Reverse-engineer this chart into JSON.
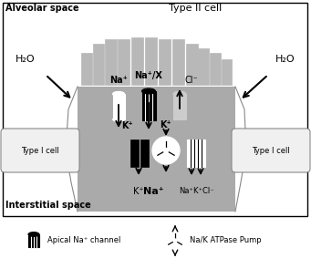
{
  "title_alveolar": "Alveolar space",
  "title_typeII": "Type II cell",
  "title_interstitial": "Interstitial space",
  "label_H2O_left": "H₂O",
  "label_H2O_right": "H₂O",
  "label_Na_top": "Na⁺",
  "label_NaX_top": "Na⁺/X",
  "label_Cl_top": "Cl⁻",
  "label_K_left": "K⁺",
  "label_K_right": "K⁺",
  "label_K_bottom_left": "K⁺",
  "label_Na_bottom": "Na⁺",
  "label_NaKCl_bottom": "Na⁺K⁺Cl⁻",
  "label_typeI_left": "Type I cell",
  "label_typeI_right": "Type I cell",
  "legend_apical": "Apical Na⁺ channel",
  "legend_pump": "Na/K ATPase Pump",
  "cell_gray": "#aaaaaa",
  "finger_gray": "#b8b8b8",
  "typeI_color": "#f0f0f0",
  "white": "#ffffff",
  "black": "#000000"
}
